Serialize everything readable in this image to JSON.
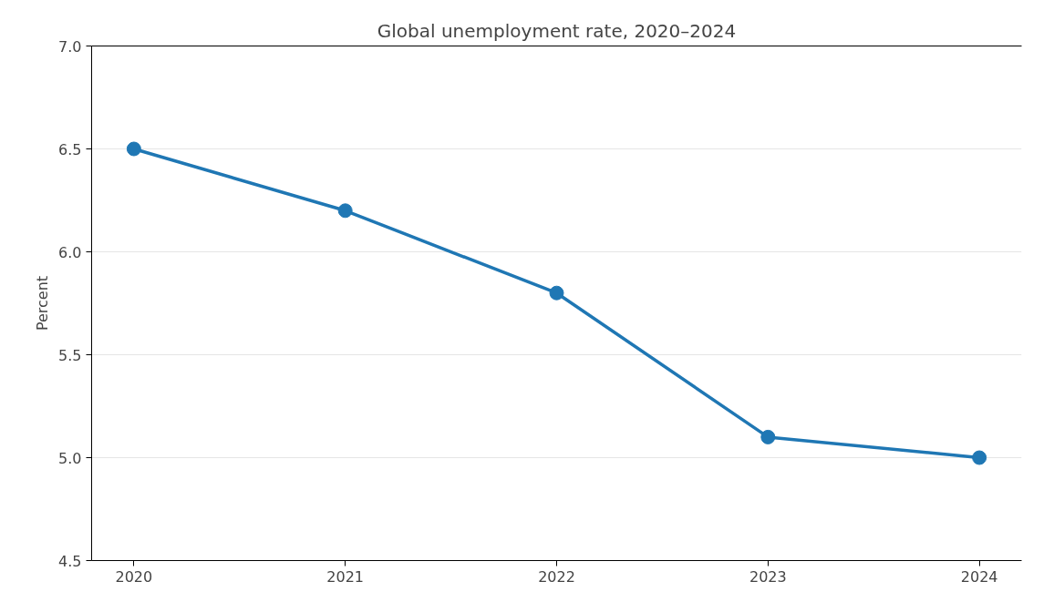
{
  "chart_data": {
    "type": "line",
    "title": "Global unemployment rate, 2020–2024",
    "ylabel": "Percent",
    "categories": [
      "2020",
      "2021",
      "2022",
      "2023",
      "2024"
    ],
    "series": [
      {
        "color": "#1f77b4",
        "values": [
          6.5,
          6.2,
          5.8,
          5.1,
          5.0
        ]
      }
    ],
    "ylim": [
      4.5,
      7.0
    ],
    "yticks": [
      {
        "value": 4.5,
        "label": "4.5"
      },
      {
        "value": 5.0,
        "label": "5.0"
      },
      {
        "value": 5.5,
        "label": "5.5"
      },
      {
        "value": 6.0,
        "label": "6.0"
      },
      {
        "value": 6.5,
        "label": "6.5"
      },
      {
        "value": 7.0,
        "label": "7.0"
      }
    ],
    "grid": "y",
    "marker": "circle",
    "line_style": "solid"
  }
}
